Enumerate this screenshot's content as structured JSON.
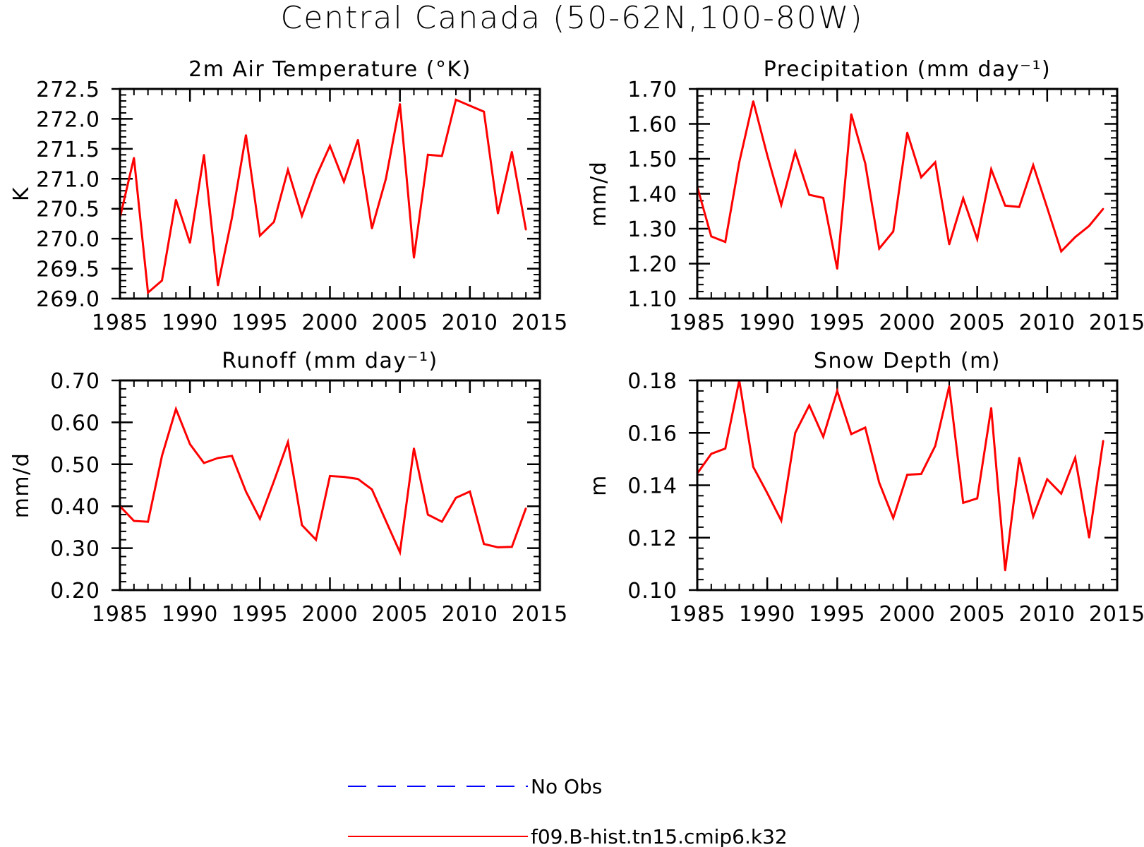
{
  "title": "Central Canada (50-62N,100-80W)",
  "legend": {
    "entries": [
      {
        "label": "No Obs",
        "color": "#0000ff",
        "style": "dashed"
      },
      {
        "label": "f09.B-hist.tn15.cmip6.k32",
        "color": "#ff0000",
        "style": "solid"
      }
    ]
  },
  "chart_data": [
    {
      "type": "line",
      "title": "2m Air Temperature (°K)",
      "xlabel": "",
      "ylabel": "K",
      "xlim": [
        1985,
        2015
      ],
      "ylim": [
        269.0,
        272.5
      ],
      "xticks": [
        1985,
        1990,
        1995,
        2000,
        2005,
        2010,
        2015
      ],
      "yticks": [
        269.0,
        269.5,
        270.0,
        270.5,
        271.0,
        271.5,
        272.0,
        272.5
      ],
      "ytick_decimals": 1,
      "grid": false,
      "series": [
        {
          "name": "f09.B-hist.tn15.cmip6.k32",
          "color": "#ff0000",
          "x": [
            1985,
            1986,
            1987,
            1988,
            1989,
            1990,
            1991,
            1992,
            1993,
            1994,
            1995,
            1996,
            1997,
            1998,
            1999,
            2000,
            2001,
            2002,
            2003,
            2004,
            2005,
            2006,
            2007,
            2008,
            2009,
            2010,
            2011,
            2012,
            2013,
            2014
          ],
          "values": [
            270.35,
            271.35,
            269.1,
            269.3,
            270.65,
            269.93,
            271.4,
            269.22,
            270.35,
            271.73,
            270.05,
            270.28,
            271.15,
            270.38,
            271.03,
            271.55,
            270.95,
            271.65,
            270.17,
            271.0,
            272.25,
            269.68,
            271.4,
            271.38,
            272.32,
            272.22,
            272.12,
            270.42,
            271.45,
            270.15
          ]
        }
      ]
    },
    {
      "type": "line",
      "title": "Precipitation (mm day⁻¹)",
      "xlabel": "",
      "ylabel": "mm/d",
      "xlim": [
        1985,
        2015
      ],
      "ylim": [
        1.1,
        1.7
      ],
      "xticks": [
        1985,
        1990,
        1995,
        2000,
        2005,
        2010,
        2015
      ],
      "yticks": [
        1.1,
        1.2,
        1.3,
        1.4,
        1.5,
        1.6,
        1.7
      ],
      "ytick_decimals": 2,
      "grid": false,
      "series": [
        {
          "name": "f09.B-hist.tn15.cmip6.k32",
          "color": "#ff0000",
          "x": [
            1985,
            1986,
            1987,
            1988,
            1989,
            1990,
            1991,
            1992,
            1993,
            1994,
            1995,
            1996,
            1997,
            1998,
            1999,
            2000,
            2001,
            2002,
            2003,
            2004,
            2005,
            2006,
            2007,
            2008,
            2009,
            2010,
            2011,
            2012,
            2013,
            2014
          ],
          "values": [
            1.42,
            1.278,
            1.262,
            1.49,
            1.665,
            1.51,
            1.368,
            1.52,
            1.397,
            1.388,
            1.185,
            1.628,
            1.487,
            1.243,
            1.292,
            1.575,
            1.447,
            1.49,
            1.255,
            1.387,
            1.27,
            1.47,
            1.366,
            1.362,
            1.482,
            1.36,
            1.235,
            1.276,
            1.308,
            1.357
          ]
        }
      ]
    },
    {
      "type": "line",
      "title": "Runoff (mm day⁻¹)",
      "xlabel": "",
      "ylabel": "mm/d",
      "xlim": [
        1985,
        2015
      ],
      "ylim": [
        0.2,
        0.7
      ],
      "xticks": [
        1985,
        1990,
        1995,
        2000,
        2005,
        2010,
        2015
      ],
      "yticks": [
        0.2,
        0.3,
        0.4,
        0.5,
        0.6,
        0.7
      ],
      "ytick_decimals": 2,
      "grid": false,
      "series": [
        {
          "name": "f09.B-hist.tn15.cmip6.k32",
          "color": "#ff0000",
          "x": [
            1985,
            1986,
            1987,
            1988,
            1989,
            1990,
            1991,
            1992,
            1993,
            1994,
            1995,
            1996,
            1997,
            1998,
            1999,
            2000,
            2001,
            2002,
            2003,
            2004,
            2005,
            2006,
            2007,
            2008,
            2009,
            2010,
            2011,
            2012,
            2013,
            2014
          ],
          "values": [
            0.4,
            0.365,
            0.363,
            0.52,
            0.632,
            0.548,
            0.503,
            0.515,
            0.52,
            0.435,
            0.37,
            0.46,
            0.553,
            0.355,
            0.32,
            0.472,
            0.47,
            0.465,
            0.44,
            0.365,
            0.29,
            0.538,
            0.38,
            0.363,
            0.42,
            0.435,
            0.31,
            0.302,
            0.303,
            0.395
          ]
        }
      ]
    },
    {
      "type": "line",
      "title": "Snow Depth (m)",
      "xlabel": "",
      "ylabel": "m",
      "xlim": [
        1985,
        2015
      ],
      "ylim": [
        0.1,
        0.18
      ],
      "xticks": [
        1985,
        1990,
        1995,
        2000,
        2005,
        2010,
        2015
      ],
      "yticks": [
        0.1,
        0.12,
        0.14,
        0.16,
        0.18
      ],
      "ytick_decimals": 2,
      "grid": false,
      "series": [
        {
          "name": "f09.B-hist.tn15.cmip6.k32",
          "color": "#ff0000",
          "x": [
            1985,
            1986,
            1987,
            1988,
            1989,
            1990,
            1991,
            1992,
            1993,
            1994,
            1995,
            1996,
            1997,
            1998,
            1999,
            2000,
            2001,
            2002,
            2003,
            2004,
            2005,
            2006,
            2007,
            2008,
            2009,
            2010,
            2011,
            2012,
            2013,
            2014
          ],
          "values": [
            0.1445,
            0.152,
            0.154,
            0.18,
            0.147,
            0.137,
            0.1265,
            0.16,
            0.1705,
            0.1585,
            0.176,
            0.1595,
            0.162,
            0.141,
            0.1275,
            0.144,
            0.1443,
            0.155,
            0.1778,
            0.1333,
            0.135,
            0.1695,
            0.1075,
            0.1505,
            0.128,
            0.1423,
            0.1368,
            0.1505,
            0.12,
            0.157
          ]
        }
      ]
    }
  ]
}
